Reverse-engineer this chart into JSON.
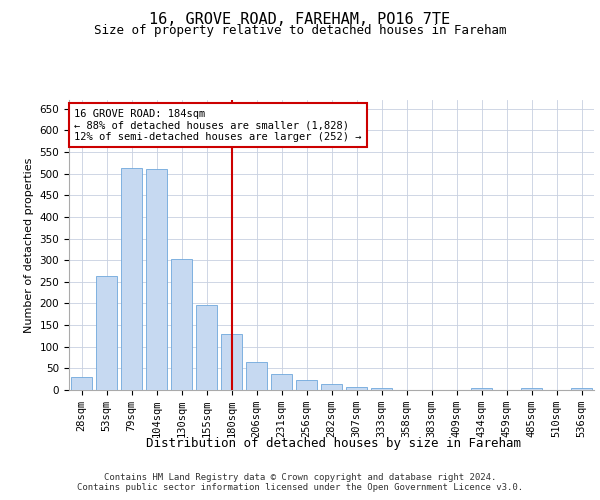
{
  "title1": "16, GROVE ROAD, FAREHAM, PO16 7TE",
  "title2": "Size of property relative to detached houses in Fareham",
  "xlabel": "Distribution of detached houses by size in Fareham",
  "ylabel": "Number of detached properties",
  "categories": [
    "28sqm",
    "53sqm",
    "79sqm",
    "104sqm",
    "130sqm",
    "155sqm",
    "180sqm",
    "206sqm",
    "231sqm",
    "256sqm",
    "282sqm",
    "307sqm",
    "333sqm",
    "358sqm",
    "383sqm",
    "409sqm",
    "434sqm",
    "459sqm",
    "485sqm",
    "510sqm",
    "536sqm"
  ],
  "values": [
    30,
    263,
    513,
    511,
    303,
    197,
    130,
    65,
    38,
    22,
    13,
    8,
    5,
    0,
    0,
    0,
    5,
    0,
    5,
    0,
    4
  ],
  "bar_color": "#c6d9f1",
  "bar_edge_color": "#6fa8dc",
  "ref_line_x": 6,
  "ref_line_color": "#cc0000",
  "annotation_text": "16 GROVE ROAD: 184sqm\n← 88% of detached houses are smaller (1,828)\n12% of semi-detached houses are larger (252) →",
  "annotation_box_color": "#ffffff",
  "annotation_box_edge": "#cc0000",
  "ylim": [
    0,
    670
  ],
  "yticks": [
    0,
    50,
    100,
    150,
    200,
    250,
    300,
    350,
    400,
    450,
    500,
    550,
    600,
    650
  ],
  "bg_color": "#ffffff",
  "grid_color": "#c8d0e0",
  "footer": "Contains HM Land Registry data © Crown copyright and database right 2024.\nContains public sector information licensed under the Open Government Licence v3.0.",
  "title1_fontsize": 11,
  "title2_fontsize": 9,
  "xlabel_fontsize": 9,
  "ylabel_fontsize": 8,
  "tick_fontsize": 7.5,
  "footer_fontsize": 6.5,
  "ann_fontsize": 7.5
}
